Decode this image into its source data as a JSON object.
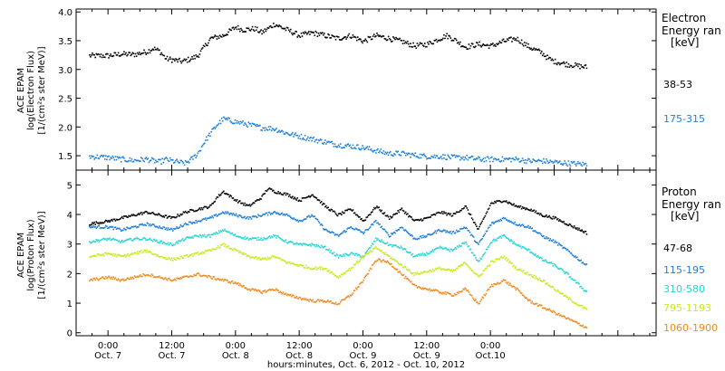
{
  "chart_data": [
    {
      "type": "scatter",
      "panel": "electron",
      "ylabel_lines": [
        "ACE EPAM",
        "log(Electron Flux)",
        "[1/(cm²s ster MeV)]"
      ],
      "yticks": [
        "1.5",
        "2.0",
        "2.5",
        "3.0",
        "3.5",
        "4.0"
      ],
      "ylim": [
        1.25,
        4.05
      ],
      "legend_title": [
        "Electron",
        "Energy ran",
        "[keV]"
      ],
      "legend_placement": "right",
      "series": [
        {
          "name": "38-53",
          "color": "#000000",
          "x": [
            -0.15,
            0.0,
            0.1,
            0.2,
            0.3,
            0.35,
            0.4,
            0.45,
            0.5,
            0.58,
            0.65,
            0.7,
            0.75,
            0.8,
            0.9,
            1.0,
            1.05,
            1.15,
            1.2,
            1.25,
            1.3,
            1.4,
            1.5,
            1.6,
            1.7,
            1.8,
            1.9,
            2.0,
            2.1,
            2.2,
            2.3,
            2.4,
            2.5,
            2.6,
            2.65,
            2.7,
            2.8,
            2.9,
            3.0,
            3.1,
            3.2,
            3.3,
            3.4,
            3.45,
            3.5,
            3.6,
            3.75
          ],
          "y": [
            3.25,
            3.25,
            3.28,
            3.27,
            3.32,
            3.38,
            3.33,
            3.2,
            3.18,
            3.15,
            3.2,
            3.25,
            3.4,
            3.55,
            3.6,
            3.75,
            3.7,
            3.72,
            3.65,
            3.72,
            3.8,
            3.7,
            3.6,
            3.65,
            3.6,
            3.55,
            3.6,
            3.5,
            3.6,
            3.55,
            3.5,
            3.42,
            3.45,
            3.55,
            3.6,
            3.55,
            3.4,
            3.45,
            3.42,
            3.5,
            3.55,
            3.4,
            3.3,
            3.2,
            3.15,
            3.1,
            3.05
          ]
        },
        {
          "name": "175-315",
          "color": "#1f7fd8",
          "x": [
            -0.15,
            0.0,
            0.1,
            0.2,
            0.3,
            0.4,
            0.45,
            0.5,
            0.55,
            0.6,
            0.65,
            0.7,
            0.75,
            0.8,
            0.85,
            0.9,
            1.0,
            1.1,
            1.2,
            1.3,
            1.4,
            1.5,
            1.6,
            1.7,
            1.8,
            1.9,
            2.0,
            2.1,
            2.2,
            2.3,
            2.4,
            2.5,
            2.6,
            2.7,
            2.8,
            2.9,
            3.0,
            3.1,
            3.2,
            3.3,
            3.4,
            3.5,
            3.6,
            3.75
          ],
          "y": [
            1.5,
            1.48,
            1.45,
            1.43,
            1.45,
            1.4,
            1.45,
            1.42,
            1.4,
            1.38,
            1.45,
            1.55,
            1.75,
            1.9,
            2.05,
            2.15,
            2.1,
            2.05,
            2.0,
            1.98,
            1.9,
            1.85,
            1.8,
            1.75,
            1.7,
            1.68,
            1.65,
            1.6,
            1.55,
            1.55,
            1.52,
            1.5,
            1.5,
            1.48,
            1.48,
            1.45,
            1.45,
            1.45,
            1.45,
            1.42,
            1.42,
            1.4,
            1.38,
            1.36
          ]
        }
      ]
    },
    {
      "type": "scatter",
      "panel": "proton",
      "ylabel_lines": [
        "ACE EPAM",
        "log(Proton Flux)",
        "[1/(cm²s ster MeV)]"
      ],
      "yticks": [
        "0",
        "1",
        "2",
        "3",
        "4",
        "5"
      ],
      "ylim": [
        -0.1,
        5.5
      ],
      "legend_title": [
        "Proton",
        "Energy ran",
        "[keV]"
      ],
      "legend_placement": "right",
      "xticks": [
        {
          "time": "0:00",
          "date": "Oct. 7"
        },
        {
          "time": "12:00",
          "date": "Oct. 7"
        },
        {
          "time": "0:00",
          "date": "Oct. 8"
        },
        {
          "time": "12:00",
          "date": "Oct. 8"
        },
        {
          "time": "0:00",
          "date": "Oct. 9"
        },
        {
          "time": "12:00",
          "date": "Oct. 9"
        },
        {
          "time": "0:00",
          "date": "Oct.10"
        }
      ],
      "xlabel": "hours:minutes, Oct.  6, 2012 - Oct. 10, 2012",
      "series": [
        {
          "name": "47-68",
          "color": "#000000",
          "x": [
            -0.15,
            0.0,
            0.1,
            0.2,
            0.3,
            0.4,
            0.5,
            0.6,
            0.7,
            0.8,
            0.85,
            0.9,
            1.0,
            1.1,
            1.2,
            1.25,
            1.3,
            1.4,
            1.5,
            1.6,
            1.7,
            1.8,
            1.9,
            2.0,
            2.1,
            2.2,
            2.3,
            2.4,
            2.5,
            2.6,
            2.7,
            2.8,
            2.9,
            3.0,
            3.1,
            3.2,
            3.3,
            3.4,
            3.5,
            3.6,
            3.75
          ],
          "y": [
            3.7,
            3.8,
            3.9,
            4.0,
            4.1,
            4.0,
            3.9,
            4.1,
            4.2,
            4.3,
            4.6,
            4.8,
            4.5,
            4.3,
            4.6,
            4.9,
            4.8,
            4.7,
            4.5,
            4.7,
            4.3,
            4.0,
            4.2,
            3.8,
            4.3,
            3.9,
            4.2,
            3.8,
            3.9,
            4.1,
            4.0,
            4.3,
            3.5,
            4.4,
            4.5,
            4.3,
            4.2,
            4.0,
            3.9,
            3.7,
            3.4
          ]
        },
        {
          "name": "115-195",
          "color": "#1f7fd8",
          "x": [
            -0.15,
            0.0,
            0.1,
            0.2,
            0.3,
            0.4,
            0.5,
            0.6,
            0.7,
            0.8,
            0.9,
            1.0,
            1.1,
            1.2,
            1.3,
            1.4,
            1.5,
            1.6,
            1.7,
            1.8,
            1.9,
            2.0,
            2.1,
            2.2,
            2.3,
            2.4,
            2.5,
            2.6,
            2.7,
            2.8,
            2.9,
            3.0,
            3.1,
            3.2,
            3.3,
            3.4,
            3.5,
            3.6,
            3.75
          ],
          "y": [
            3.6,
            3.6,
            3.5,
            3.6,
            3.7,
            3.6,
            3.5,
            3.7,
            3.8,
            3.9,
            4.1,
            4.0,
            3.9,
            4.0,
            4.1,
            4.0,
            3.8,
            4.0,
            3.5,
            3.3,
            3.6,
            3.4,
            3.8,
            3.3,
            3.6,
            3.2,
            3.3,
            3.5,
            3.4,
            3.6,
            3.0,
            3.7,
            3.9,
            3.7,
            3.6,
            3.3,
            3.1,
            2.8,
            2.3
          ]
        },
        {
          "name": "310-580",
          "color": "#22d6d6",
          "x": [
            -0.15,
            0.0,
            0.1,
            0.2,
            0.3,
            0.4,
            0.5,
            0.6,
            0.7,
            0.8,
            0.9,
            1.0,
            1.1,
            1.2,
            1.3,
            1.4,
            1.5,
            1.6,
            1.7,
            1.8,
            1.9,
            2.0,
            2.1,
            2.2,
            2.3,
            2.4,
            2.5,
            2.6,
            2.7,
            2.8,
            2.9,
            3.0,
            3.1,
            3.2,
            3.3,
            3.4,
            3.5,
            3.6,
            3.75
          ],
          "y": [
            3.1,
            3.2,
            3.1,
            3.2,
            3.2,
            3.1,
            3.0,
            3.2,
            3.3,
            3.3,
            3.5,
            3.3,
            3.2,
            3.2,
            3.3,
            3.1,
            3.0,
            3.0,
            2.9,
            2.6,
            2.7,
            2.6,
            3.2,
            3.0,
            2.9,
            2.6,
            2.7,
            2.9,
            2.8,
            3.1,
            2.4,
            3.1,
            3.3,
            3.0,
            2.8,
            2.5,
            2.3,
            2.0,
            1.4
          ]
        },
        {
          "name": "795-1193",
          "color": "#c8ea1e",
          "x": [
            -0.15,
            0.0,
            0.1,
            0.2,
            0.3,
            0.4,
            0.5,
            0.6,
            0.7,
            0.8,
            0.9,
            1.0,
            1.1,
            1.2,
            1.3,
            1.4,
            1.5,
            1.6,
            1.7,
            1.8,
            1.9,
            2.0,
            2.1,
            2.2,
            2.3,
            2.4,
            2.5,
            2.6,
            2.7,
            2.8,
            2.9,
            3.0,
            3.1,
            3.2,
            3.3,
            3.4,
            3.5,
            3.6,
            3.75
          ],
          "y": [
            2.6,
            2.7,
            2.6,
            2.7,
            2.8,
            2.6,
            2.5,
            2.6,
            2.7,
            2.8,
            3.0,
            2.8,
            2.6,
            2.5,
            2.6,
            2.4,
            2.3,
            2.2,
            2.2,
            1.9,
            2.2,
            2.6,
            2.9,
            2.6,
            2.3,
            2.0,
            2.1,
            2.2,
            2.1,
            2.4,
            1.9,
            2.4,
            2.6,
            2.2,
            2.0,
            1.8,
            1.5,
            1.2,
            0.8
          ]
        },
        {
          "name": "1060-1900",
          "color": "#f08a1e",
          "x": [
            -0.15,
            0.0,
            0.1,
            0.2,
            0.3,
            0.4,
            0.5,
            0.6,
            0.7,
            0.8,
            0.9,
            1.0,
            1.1,
            1.2,
            1.3,
            1.4,
            1.5,
            1.6,
            1.7,
            1.8,
            1.9,
            2.0,
            2.1,
            2.2,
            2.3,
            2.4,
            2.5,
            2.6,
            2.7,
            2.8,
            2.9,
            3.0,
            3.1,
            3.2,
            3.3,
            3.4,
            3.5,
            3.6,
            3.75
          ],
          "y": [
            1.8,
            1.9,
            1.8,
            1.9,
            2.0,
            1.9,
            1.8,
            1.9,
            2.0,
            1.9,
            1.8,
            1.7,
            1.5,
            1.4,
            1.5,
            1.3,
            1.2,
            1.1,
            1.1,
            1.0,
            1.3,
            1.8,
            2.5,
            2.4,
            2.0,
            1.6,
            1.5,
            1.4,
            1.3,
            1.5,
            1.0,
            1.6,
            1.8,
            1.5,
            1.1,
            0.9,
            0.7,
            0.5,
            0.2
          ]
        }
      ]
    }
  ]
}
